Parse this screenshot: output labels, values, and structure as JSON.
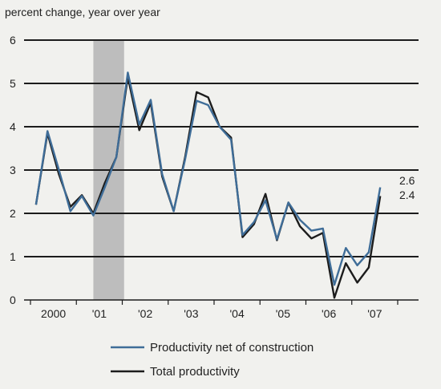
{
  "chart_data": {
    "type": "line",
    "ylabel": "percent change, year over year",
    "ylim": [
      0,
      6
    ],
    "y_ticks": [
      0,
      1,
      2,
      3,
      4,
      5,
      6
    ],
    "grid": "horizontal",
    "x_tick_labels": [
      "2000",
      "'01",
      "'02",
      "'03",
      "'04",
      "'05",
      "'06",
      "'07"
    ],
    "shaded_region": {
      "from": 2001.25,
      "to": 2001.92
    },
    "legend_position": "bottom",
    "x": [
      2000.0,
      2000.25,
      2000.5,
      2000.75,
      2001.0,
      2001.25,
      2001.5,
      2001.75,
      2002.0,
      2002.25,
      2002.5,
      2002.75,
      2003.0,
      2003.25,
      2003.5,
      2003.75,
      2004.0,
      2004.25,
      2004.5,
      2004.75,
      2005.0,
      2005.25,
      2005.5,
      2005.75,
      2006.0,
      2006.25,
      2006.5,
      2006.75,
      2007.0,
      2007.25,
      2007.5,
      2007.75
    ],
    "series": [
      {
        "name": "Productivity net of construction",
        "color": "#3f6d98",
        "values": [
          2.2,
          3.9,
          3.0,
          2.05,
          2.4,
          1.95,
          2.6,
          3.3,
          5.25,
          4.05,
          4.62,
          2.9,
          2.05,
          3.25,
          4.6,
          4.5,
          4.0,
          3.7,
          1.5,
          1.8,
          2.3,
          1.4,
          2.25,
          1.85,
          1.6,
          1.65,
          0.35,
          1.2,
          0.8,
          1.1,
          2.6,
          null
        ],
        "end_label": "2.6"
      },
      {
        "name": "Total productivity",
        "color": "#1c1c1c",
        "values": [
          2.2,
          3.85,
          2.9,
          2.15,
          2.42,
          2.0,
          2.7,
          3.3,
          5.15,
          3.92,
          4.55,
          2.85,
          2.05,
          3.3,
          4.8,
          4.68,
          4.0,
          3.75,
          1.45,
          1.75,
          2.45,
          1.38,
          2.25,
          1.7,
          1.42,
          1.55,
          0.05,
          0.85,
          0.4,
          0.75,
          2.4,
          null
        ],
        "end_label": "2.4"
      }
    ]
  }
}
